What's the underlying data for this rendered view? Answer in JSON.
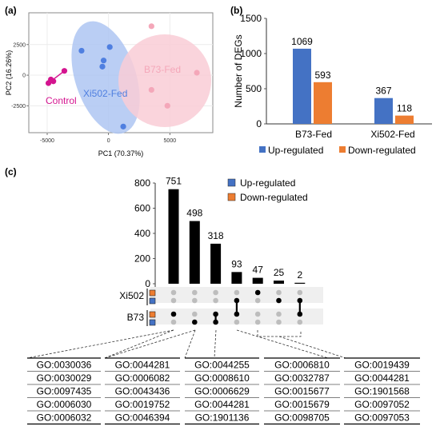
{
  "panels": {
    "a": {
      "label": "(a)"
    },
    "b": {
      "label": "(b)"
    },
    "c": {
      "label": "(c)"
    }
  },
  "colors": {
    "control": "#d4148f",
    "xi502": "#4f7fe0",
    "b73": "#f4a7b9",
    "ellipse_xi502": "#aec6f2",
    "ellipse_b73": "#f9cdd6",
    "up": "#4472c4",
    "down": "#ed7d31",
    "bar_black": "#000000",
    "dot_grey": "#bdbdbd"
  },
  "chart_data": [
    {
      "type": "scatter",
      "panel": "a",
      "xlabel": "PC1 (70.37%)",
      "ylabel": "PC2 (16.26%)",
      "xlim": [
        -6500,
        8500
      ],
      "ylim": [
        -4700,
        5100
      ],
      "xticks": [
        -5000,
        0,
        5000
      ],
      "yticks": [
        -2500,
        0,
        2500
      ],
      "series": [
        {
          "name": "Control",
          "points": [
            [
              -4900,
              -650
            ],
            [
              -4500,
              -500
            ],
            [
              -4700,
              -350
            ],
            [
              -3600,
              350
            ]
          ]
        },
        {
          "name": "Xi502-Fed",
          "points": [
            [
              -2200,
              2000
            ],
            [
              -400,
              1200
            ],
            [
              100,
              2300
            ],
            [
              -500,
              700
            ],
            [
              1200,
              -4200
            ]
          ]
        },
        {
          "name": "B73-Fed",
          "points": [
            [
              3500,
              4000
            ],
            [
              3500,
              -1200
            ],
            [
              4800,
              -2500
            ],
            [
              7200,
              200
            ]
          ]
        }
      ]
    },
    {
      "type": "bar",
      "panel": "b",
      "ylabel": "Number of DEGs",
      "ylim": [
        0,
        1500
      ],
      "yticks": [
        0,
        500,
        1000,
        1500
      ],
      "categories": [
        "B73-Fed",
        "Xi502-Fed"
      ],
      "series": [
        {
          "name": "Up-regulated",
          "values": [
            1069,
            367
          ]
        },
        {
          "name": "Down-regulated",
          "values": [
            593,
            118
          ]
        }
      ]
    },
    {
      "type": "bar",
      "panel": "c",
      "subtype": "upset",
      "ylim": [
        0,
        800
      ],
      "yticks": [
        0,
        200,
        400,
        600,
        800
      ],
      "values": [
        751,
        498,
        318,
        93,
        47,
        25,
        2
      ],
      "sets": [
        "Xi502 Up",
        "Xi502 Down",
        "B73 Up",
        "B73 Down"
      ],
      "row_labels": [
        "Xi502",
        "B73"
      ],
      "legend": [
        "Up-regulated",
        "Down-regulated"
      ],
      "intersections": [
        [
          "B73 Down"
        ],
        [
          "B73 Up"
        ],
        [
          "B73 Down",
          "B73 Up"
        ],
        [
          "Xi502 Up",
          "B73 Down"
        ],
        [
          "Xi502 Down"
        ],
        [
          "Xi502 Up"
        ],
        [
          "Xi502 Up",
          "B73 Down"
        ]
      ],
      "go_groups": [
        [
          "GO:0030036",
          "GO:0030029",
          "GO:0097435",
          "GO:0006030",
          "GO:0006032"
        ],
        [
          "GO:0044281",
          "GO:0006082",
          "GO:0043436",
          "GO:0019752",
          "GO:0046394"
        ],
        [
          "GO:0044255",
          "GO:0008610",
          "GO:0006629",
          "GO:0044281",
          "GO:1901136"
        ],
        [
          "GO:0006810",
          "GO:0032787",
          "GO:0015677",
          "GO:0015679",
          "GO:0098705"
        ],
        [
          "GO:0019439",
          "GO:0044281",
          "GO:1901568",
          "GO:0097052",
          "GO:0097053"
        ]
      ]
    }
  ]
}
